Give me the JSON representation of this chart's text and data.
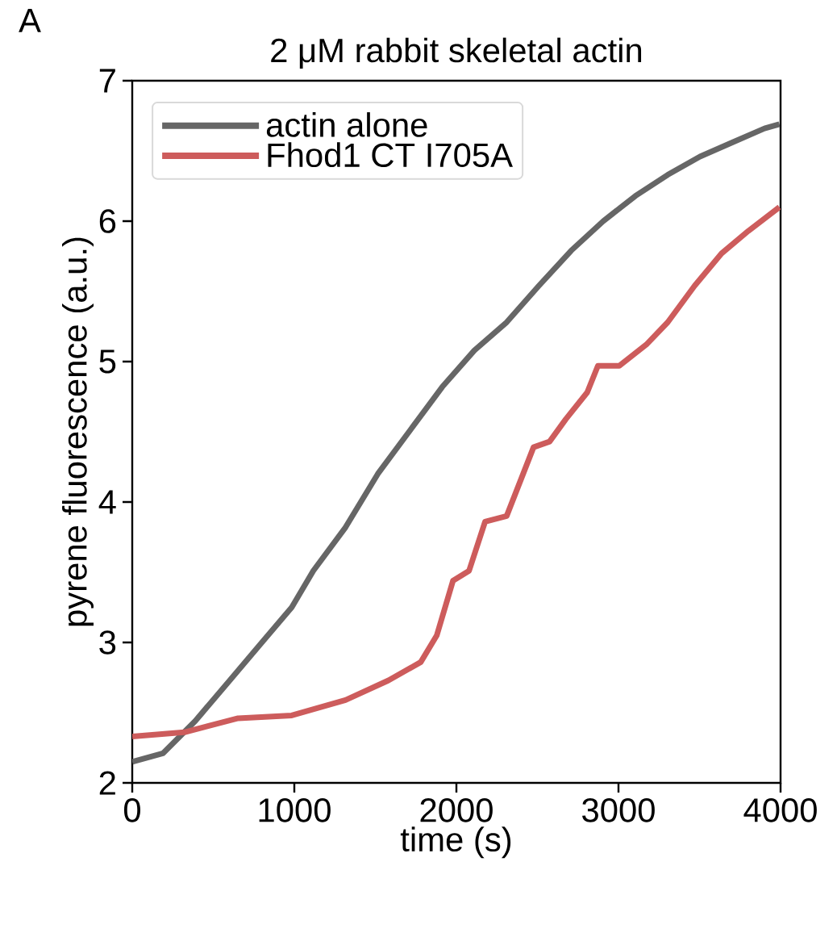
{
  "chart_data": {
    "type": "line",
    "title": "2 μM rabbit skeletal actin",
    "xlabel": "time (s)",
    "ylabel": "pyrene fluorescence (a.u.)",
    "annotations": [
      "A"
    ],
    "xlim": [
      0,
      4000
    ],
    "ylim": [
      2,
      7
    ],
    "xticks": [
      0,
      1000,
      2000,
      3000,
      4000
    ],
    "yticks": [
      2,
      3,
      4,
      5,
      6,
      7
    ],
    "legend": "top left",
    "grid": false,
    "marker": "none",
    "line_style": "solid",
    "series": [
      {
        "name": "actin alone",
        "color": "#666666",
        "x": [
          0,
          189,
          388,
          587,
          785,
          984,
          1117,
          1316,
          1515,
          1714,
          1913,
          2111,
          2310,
          2509,
          2708,
          2906,
          3105,
          3304,
          3503,
          3702,
          3901,
          3993
        ],
        "values": [
          2.15,
          2.21,
          2.44,
          2.71,
          2.98,
          3.25,
          3.51,
          3.82,
          4.2,
          4.51,
          4.82,
          5.08,
          5.28,
          5.54,
          5.79,
          6.0,
          6.18,
          6.33,
          6.46,
          6.56,
          6.66,
          6.69
        ]
      },
      {
        "name": "Fhod1 CT I705A",
        "color": "#cd5c5c",
        "x": [
          0,
          321,
          653,
          984,
          1316,
          1581,
          1780,
          1879,
          1979,
          2078,
          2177,
          2310,
          2476,
          2575,
          2675,
          2807,
          2873,
          3005,
          3171,
          3304,
          3470,
          3636,
          3801,
          3993
        ],
        "values": [
          2.33,
          2.36,
          2.46,
          2.48,
          2.59,
          2.73,
          2.86,
          3.05,
          3.44,
          3.51,
          3.86,
          3.9,
          4.39,
          4.43,
          4.59,
          4.78,
          4.97,
          4.97,
          5.12,
          5.28,
          5.54,
          5.77,
          5.93,
          6.1
        ]
      }
    ]
  }
}
